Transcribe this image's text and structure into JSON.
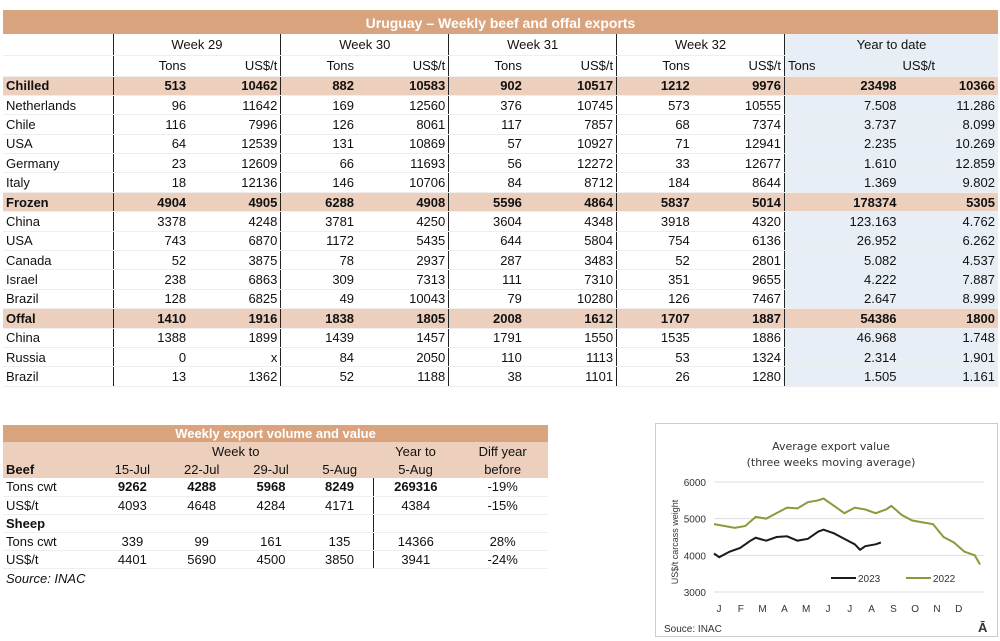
{
  "main_table": {
    "title": "Uruguay – Weekly beef and offal exports",
    "weeks": [
      "Week 29",
      "Week 30",
      "Week 31",
      "Week 32"
    ],
    "ytd_label": "Year to date",
    "col_tons": "Tons",
    "col_usd": "US$/t",
    "rows": [
      {
        "label": "Chilled",
        "group": true,
        "v": [
          "513",
          "10462",
          "882",
          "10583",
          "902",
          "10517",
          "1212",
          "9976"
        ],
        "ytd": [
          "23498",
          "10366"
        ]
      },
      {
        "label": "Netherlands",
        "v": [
          "96",
          "11642",
          "169",
          "12560",
          "376",
          "10745",
          "573",
          "10555"
        ],
        "ytd": [
          "7.508",
          "11.286"
        ]
      },
      {
        "label": "Chile",
        "v": [
          "116",
          "7996",
          "126",
          "8061",
          "117",
          "7857",
          "68",
          "7374"
        ],
        "ytd": [
          "3.737",
          "8.099"
        ]
      },
      {
        "label": "USA",
        "v": [
          "64",
          "12539",
          "131",
          "10869",
          "57",
          "10927",
          "71",
          "12941"
        ],
        "ytd": [
          "2.235",
          "10.269"
        ]
      },
      {
        "label": "Germany",
        "v": [
          "23",
          "12609",
          "66",
          "11693",
          "56",
          "12272",
          "33",
          "12677"
        ],
        "ytd": [
          "1.610",
          "12.859"
        ]
      },
      {
        "label": "Italy",
        "v": [
          "18",
          "12136",
          "146",
          "10706",
          "84",
          "8712",
          "184",
          "8644"
        ],
        "ytd": [
          "1.369",
          "9.802"
        ]
      },
      {
        "label": "Frozen",
        "group": true,
        "v": [
          "4904",
          "4905",
          "6288",
          "4908",
          "5596",
          "4864",
          "5837",
          "5014"
        ],
        "ytd": [
          "178374",
          "5305"
        ]
      },
      {
        "label": "China",
        "v": [
          "3378",
          "4248",
          "3781",
          "4250",
          "3604",
          "4348",
          "3918",
          "4320"
        ],
        "ytd": [
          "123.163",
          "4.762"
        ]
      },
      {
        "label": "USA",
        "v": [
          "743",
          "6870",
          "1172",
          "5435",
          "644",
          "5804",
          "754",
          "6136"
        ],
        "ytd": [
          "26.952",
          "6.262"
        ]
      },
      {
        "label": "Canada",
        "v": [
          "52",
          "3875",
          "78",
          "2937",
          "287",
          "3483",
          "52",
          "2801"
        ],
        "ytd": [
          "5.082",
          "4.537"
        ]
      },
      {
        "label": "Israel",
        "v": [
          "238",
          "6863",
          "309",
          "7313",
          "111",
          "7310",
          "351",
          "9655"
        ],
        "ytd": [
          "4.222",
          "7.887"
        ]
      },
      {
        "label": "Brazil",
        "v": [
          "128",
          "6825",
          "49",
          "10043",
          "79",
          "10280",
          "126",
          "7467"
        ],
        "ytd": [
          "2.647",
          "8.999"
        ]
      },
      {
        "label": "Offal",
        "group": true,
        "v": [
          "1410",
          "1916",
          "1838",
          "1805",
          "2008",
          "1612",
          "1707",
          "1887"
        ],
        "ytd": [
          "54386",
          "1800"
        ]
      },
      {
        "label": "China",
        "v": [
          "1388",
          "1899",
          "1439",
          "1457",
          "1791",
          "1550",
          "1535",
          "1886"
        ],
        "ytd": [
          "46.968",
          "1.748"
        ]
      },
      {
        "label": "Russia",
        "v": [
          "0",
          "x",
          "84",
          "2050",
          "110",
          "1113",
          "53",
          "1324"
        ],
        "ytd": [
          "2.314",
          "1.901"
        ]
      },
      {
        "label": "Brazil",
        "v": [
          "13",
          "1362",
          "52",
          "1188",
          "38",
          "1101",
          "26",
          "1280"
        ],
        "ytd": [
          "1.505",
          "1.161"
        ]
      }
    ]
  },
  "weekly_table": {
    "title": "Weekly export volume and value",
    "week_to": "Week to",
    "year_to": "Year to",
    "diff": "Diff year",
    "before": "before",
    "beef": "Beef",
    "sheep": "Sheep",
    "dates": [
      "15-Jul",
      "22-Jul",
      "29-Jul",
      "5-Aug"
    ],
    "ytd_date": "5-Aug",
    "beef_rows": [
      {
        "label": "Tons cwt",
        "bold": true,
        "v": [
          "9262",
          "4288",
          "5968",
          "8249"
        ],
        "ytd": "269316",
        "diff": "-19%"
      },
      {
        "label": "US$/t",
        "v": [
          "4093",
          "4648",
          "4284",
          "4171"
        ],
        "ytd": "4384",
        "diff": "-15%"
      }
    ],
    "sheep_rows": [
      {
        "label": "Tons cwt",
        "v": [
          "339",
          "99",
          "161",
          "135"
        ],
        "ytd": "14366",
        "diff": "28%"
      },
      {
        "label": "US$/t",
        "v": [
          "4401",
          "5690",
          "4500",
          "3850"
        ],
        "ytd": "3941",
        "diff": "-24%"
      }
    ],
    "source": "Source: INAC"
  },
  "chart_data": {
    "type": "line",
    "title": "Average export value",
    "subtitle": "(three weeks moving average)",
    "ylabel": "US$/t carcass weight",
    "ylim": [
      3000,
      6000
    ],
    "yticks": [
      3000,
      4000,
      5000,
      6000
    ],
    "xticks": [
      "J",
      "F",
      "M",
      "A",
      "M",
      "J",
      "J",
      "A",
      "S",
      "O",
      "N",
      "D"
    ],
    "grid": true,
    "legend": "bottom-right",
    "source": "Souce: INAC",
    "corner_mark": "Ā",
    "series": [
      {
        "name": "2023",
        "color": "#1a1a1a",
        "x": [
          1,
          2,
          4,
          6,
          8,
          9,
          11,
          13,
          15,
          17,
          19,
          21,
          22,
          24,
          26,
          28,
          29,
          30,
          32,
          33
        ],
        "y": [
          4050,
          3950,
          4100,
          4200,
          4400,
          4480,
          4400,
          4500,
          4520,
          4400,
          4450,
          4650,
          4700,
          4600,
          4450,
          4300,
          4150,
          4250,
          4300,
          4350
        ]
      },
      {
        "name": "2022",
        "color": "#8a9a3a",
        "x": [
          1,
          3,
          5,
          7,
          9,
          11,
          13,
          15,
          17,
          19,
          21,
          22,
          24,
          26,
          28,
          30,
          32,
          34,
          35,
          37,
          39,
          41,
          43,
          45,
          47,
          49,
          51,
          52
        ],
        "y": [
          4850,
          4800,
          4750,
          4800,
          5050,
          5000,
          5150,
          5300,
          5280,
          5450,
          5500,
          5550,
          5350,
          5150,
          5300,
          5250,
          5150,
          5250,
          5350,
          5100,
          4950,
          4900,
          4850,
          4500,
          4350,
          4100,
          4000,
          3750
        ]
      }
    ]
  }
}
